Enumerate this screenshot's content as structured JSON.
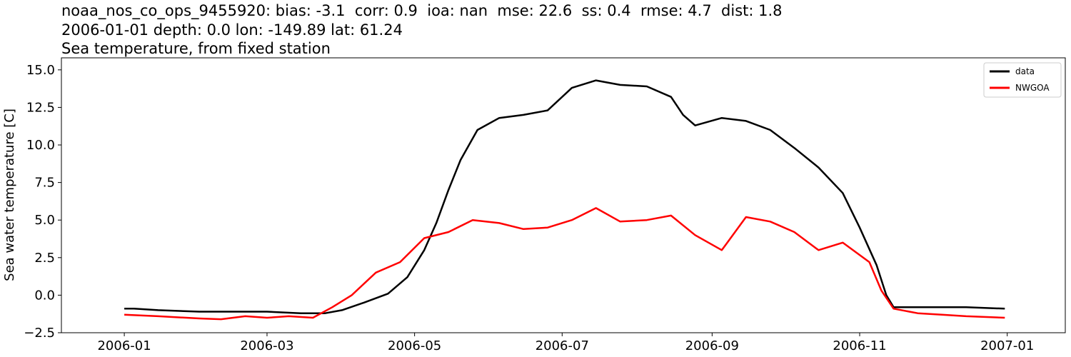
{
  "chart_data": {
    "type": "line",
    "title_lines": [
      "noaa_nos_co_ops_9455920: bias: -3.1  corr: 0.9  ioa: nan  mse: 22.6  ss: 0.4  rmse: 4.7  dist: 1.8",
      "2006-01-01 depth: 0.0 lon: -149.89 lat: 61.24",
      "Sea temperature, from fixed station"
    ],
    "xlabel": "",
    "ylabel": "Sea water temperature [C]",
    "xlim": [
      "2005-12-06",
      "2007-01-25"
    ],
    "ylim": [
      -2.5,
      15.8
    ],
    "x_ticks": [
      "2006-01",
      "2006-03",
      "2006-05",
      "2006-07",
      "2006-09",
      "2006-11",
      "2007-01"
    ],
    "y_ticks": [
      -2.5,
      0.0,
      2.5,
      5.0,
      7.5,
      10.0,
      12.5,
      15.0
    ],
    "y_tick_labels": [
      "−2.5",
      "0.0",
      "2.5",
      "5.0",
      "7.5",
      "10.0",
      "12.5",
      "15.0"
    ],
    "grid": false,
    "legend_position": "top-right",
    "series": [
      {
        "name": "data",
        "color": "#000000",
        "points": [
          [
            "2006-01-01",
            -0.9
          ],
          [
            "2006-01-05",
            -0.9
          ],
          [
            "2006-01-15",
            -1.0
          ],
          [
            "2006-02-01",
            -1.1
          ],
          [
            "2006-02-15",
            -1.1
          ],
          [
            "2006-03-01",
            -1.1
          ],
          [
            "2006-03-15",
            -1.2
          ],
          [
            "2006-03-25",
            -1.2
          ],
          [
            "2006-04-01",
            -1.0
          ],
          [
            "2006-04-10",
            -0.5
          ],
          [
            "2006-04-20",
            0.1
          ],
          [
            "2006-04-28",
            1.2
          ],
          [
            "2006-05-05",
            3.0
          ],
          [
            "2006-05-10",
            4.8
          ],
          [
            "2006-05-15",
            7.0
          ],
          [
            "2006-05-20",
            9.0
          ],
          [
            "2006-05-27",
            11.0
          ],
          [
            "2006-06-05",
            11.8
          ],
          [
            "2006-06-15",
            12.0
          ],
          [
            "2006-06-25",
            12.3
          ],
          [
            "2006-07-05",
            13.8
          ],
          [
            "2006-07-15",
            14.3
          ],
          [
            "2006-07-25",
            14.0
          ],
          [
            "2006-08-05",
            13.9
          ],
          [
            "2006-08-15",
            13.2
          ],
          [
            "2006-08-20",
            12.0
          ],
          [
            "2006-08-25",
            11.3
          ],
          [
            "2006-09-05",
            11.8
          ],
          [
            "2006-09-15",
            11.6
          ],
          [
            "2006-09-25",
            11.0
          ],
          [
            "2006-10-05",
            9.8
          ],
          [
            "2006-10-15",
            8.5
          ],
          [
            "2006-10-25",
            6.8
          ],
          [
            "2006-11-01",
            4.5
          ],
          [
            "2006-11-08",
            2.0
          ],
          [
            "2006-11-12",
            0.0
          ],
          [
            "2006-11-15",
            -0.8
          ],
          [
            "2006-12-01",
            -0.8
          ],
          [
            "2006-12-15",
            -0.8
          ],
          [
            "2006-12-31",
            -0.9
          ]
        ]
      },
      {
        "name": "NWGOA",
        "color": "#ff0000",
        "points": [
          [
            "2006-01-01",
            -1.3
          ],
          [
            "2006-01-15",
            -1.4
          ],
          [
            "2006-02-01",
            -1.55
          ],
          [
            "2006-02-10",
            -1.6
          ],
          [
            "2006-02-20",
            -1.4
          ],
          [
            "2006-03-01",
            -1.5
          ],
          [
            "2006-03-10",
            -1.4
          ],
          [
            "2006-03-20",
            -1.5
          ],
          [
            "2006-03-28",
            -0.8
          ],
          [
            "2006-04-05",
            0.0
          ],
          [
            "2006-04-15",
            1.5
          ],
          [
            "2006-04-25",
            2.2
          ],
          [
            "2006-05-05",
            3.8
          ],
          [
            "2006-05-15",
            4.2
          ],
          [
            "2006-05-25",
            5.0
          ],
          [
            "2006-06-05",
            4.8
          ],
          [
            "2006-06-15",
            4.4
          ],
          [
            "2006-06-25",
            4.5
          ],
          [
            "2006-07-05",
            5.0
          ],
          [
            "2006-07-15",
            5.8
          ],
          [
            "2006-07-25",
            4.9
          ],
          [
            "2006-08-05",
            5.0
          ],
          [
            "2006-08-15",
            5.3
          ],
          [
            "2006-08-25",
            4.0
          ],
          [
            "2006-09-05",
            3.0
          ],
          [
            "2006-09-15",
            5.2
          ],
          [
            "2006-09-25",
            4.9
          ],
          [
            "2006-10-05",
            4.2
          ],
          [
            "2006-10-15",
            3.0
          ],
          [
            "2006-10-25",
            3.5
          ],
          [
            "2006-11-05",
            2.2
          ],
          [
            "2006-11-10",
            0.3
          ],
          [
            "2006-11-15",
            -0.9
          ],
          [
            "2006-11-25",
            -1.2
          ],
          [
            "2006-12-05",
            -1.3
          ],
          [
            "2006-12-15",
            -1.4
          ],
          [
            "2006-12-31",
            -1.5
          ]
        ]
      }
    ]
  }
}
